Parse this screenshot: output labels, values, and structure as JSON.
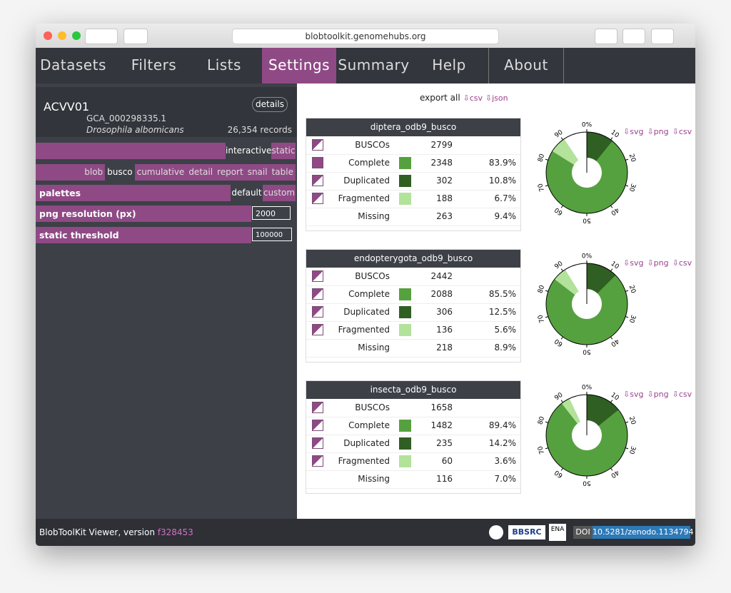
{
  "browser": {
    "url": "blobtoolkit.genomehubs.org"
  },
  "nav": [
    "Datasets",
    "Filters",
    "Lists",
    "Settings",
    "Summary",
    "Help",
    "About"
  ],
  "sidebar": {
    "dataset": "ACVV01",
    "details": "details",
    "accession": "GCA_000298335.1",
    "species": "Drosophila albomicans",
    "records": "26,354 records",
    "view_modes": [
      "interactive",
      "static"
    ],
    "views": [
      "blob",
      "busco",
      "cumulative",
      "detail",
      "report",
      "snail",
      "table"
    ],
    "palettes": {
      "label": "palettes",
      "options": [
        "default",
        "custom"
      ]
    },
    "png_resolution": {
      "label": "png resolution (px)",
      "value": 2000
    },
    "static_threshold": {
      "label": "static threshold",
      "value": 100000
    }
  },
  "export_all": {
    "label": "export all",
    "links": [
      "⇩csv",
      "⇩json"
    ]
  },
  "busco_exports": [
    "⇩svg",
    "⇩png",
    "⇩csv"
  ],
  "busco_axis": [
    {
      "value": 0,
      "label": "0%"
    },
    10,
    20,
    30,
    40,
    50,
    60,
    70,
    80,
    90
  ],
  "busco_tables": [
    {
      "title": "diptera_odb9_busco",
      "rows": [
        {
          "label": "BUSCOs",
          "count": 2799
        },
        {
          "label": "Complete",
          "count": 2348,
          "percent": 83.9,
          "percent_label": "83.9%",
          "color": "#56a13f"
        },
        {
          "label": "Duplicated",
          "count": 302,
          "percent": 10.8,
          "percent_label": "10.8%",
          "color": "#2f5f22"
        },
        {
          "label": "Fragmented",
          "count": 188,
          "percent": 6.7,
          "percent_label": "6.7%",
          "color": "#b3e29b"
        },
        {
          "label": "Missing",
          "count": 263,
          "percent": 9.4,
          "percent_label": "9.4%"
        }
      ]
    },
    {
      "title": "endopterygota_odb9_busco",
      "rows": [
        {
          "label": "BUSCOs",
          "count": 2442
        },
        {
          "label": "Complete",
          "count": 2088,
          "percent": 85.5,
          "percent_label": "85.5%",
          "color": "#56a13f"
        },
        {
          "label": "Duplicated",
          "count": 306,
          "percent": 12.5,
          "percent_label": "12.5%",
          "color": "#2f5f22"
        },
        {
          "label": "Fragmented",
          "count": 136,
          "percent": 5.6,
          "percent_label": "5.6%",
          "color": "#b3e29b"
        },
        {
          "label": "Missing",
          "count": 218,
          "percent": 8.9,
          "percent_label": "8.9%"
        }
      ]
    },
    {
      "title": "insecta_odb9_busco",
      "rows": [
        {
          "label": "BUSCOs",
          "count": 1658
        },
        {
          "label": "Complete",
          "count": 1482,
          "percent": 89.4,
          "percent_label": "89.4%",
          "color": "#56a13f"
        },
        {
          "label": "Duplicated",
          "count": 235,
          "percent": 14.2,
          "percent_label": "14.2%",
          "color": "#2f5f22"
        },
        {
          "label": "Fragmented",
          "count": 60,
          "percent": 3.6,
          "percent_label": "3.6%",
          "color": "#b3e29b"
        },
        {
          "label": "Missing",
          "count": 116,
          "percent": 7.0,
          "percent_label": "7.0%"
        }
      ]
    }
  ],
  "footer": {
    "text": "BlobToolKit Viewer, version",
    "version": "f328453",
    "logos": [
      "BBSRC",
      "ENA"
    ],
    "doi_label": "DOI",
    "doi": "10.5281/zenodo.1134794"
  }
}
